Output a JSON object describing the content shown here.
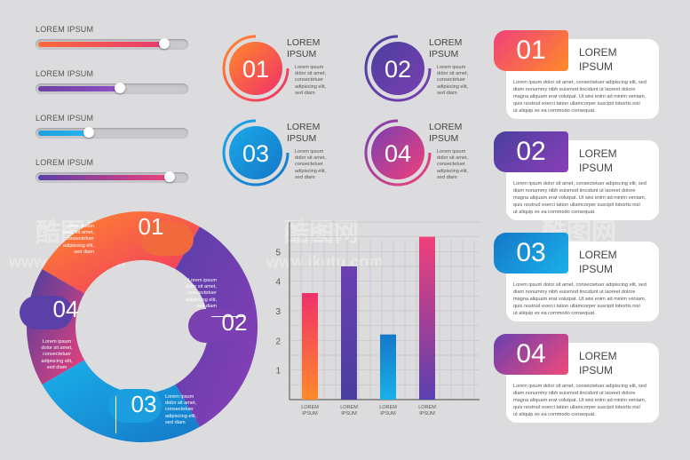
{
  "sliders": [
    {
      "label": "LOREM IPSUM",
      "value": 0.86,
      "from": "#ff6a3d",
      "to": "#e63a6e"
    },
    {
      "label": "LOREM IPSUM",
      "value": 0.56,
      "from": "#6a3fa0",
      "to": "#9050c8"
    },
    {
      "label": "LOREM IPSUM",
      "value": 0.35,
      "from": "#1e9ee0",
      "to": "#2ab6f0"
    },
    {
      "label": "LOREM IPSUM",
      "value": 0.9,
      "from": "#5840a8",
      "to": "#f0407a"
    }
  ],
  "circles": [
    {
      "num": "01",
      "title1": "LOREM",
      "title2": "IPSUM",
      "text": [
        "Lorem ipsum",
        "dolor sit amet,",
        "consectetuer",
        "adipiscing elit,",
        "sed diam"
      ],
      "c1": "#ff8a2a",
      "c2": "#f0306a"
    },
    {
      "num": "02",
      "title1": "LOREM",
      "title2": "IPSUM",
      "text": [
        "Lorem ipsum",
        "dolor sit amet,",
        "consectetuer",
        "adipiscing elit,",
        "sed diam"
      ],
      "c1": "#4a3f9e",
      "c2": "#7a3fb0"
    },
    {
      "num": "03",
      "title1": "LOREM",
      "title2": "IPSUM",
      "text": [
        "Lorem ipsum",
        "dolor sit amet,",
        "consectetuer",
        "adipiscing elit,",
        "sed diam"
      ],
      "c1": "#1aa8e8",
      "c2": "#1578c8"
    },
    {
      "num": "04",
      "title1": "LOREM",
      "title2": "IPSUM",
      "text": [
        "Lorem ipsum",
        "dolor sit amet,",
        "consectetuer",
        "adipiscing elit,",
        "sed diam"
      ],
      "c1": "#7a3fb0",
      "c2": "#f0407a"
    }
  ],
  "cards": [
    {
      "num": "01",
      "title1": "LOREM",
      "title2": "IPSUM",
      "text": [
        "Lorem ipsum dolor sit amet, consectetuer adipiscing elit, sed",
        "diam nonummy nibh euismod tincidunt ut laoreet dolore",
        "magna aliquam erat volutpat. Ut wisi enim ad minim veniam,",
        "quis nostrud exerci tation ullamcorper suscipit lobortis nisl",
        "ut aliquip ex ea commodo consequat."
      ],
      "c1": "#f0407a",
      "c2": "#ff8a2a"
    },
    {
      "num": "02",
      "title1": "LOREM",
      "title2": "IPSUM",
      "text": [
        "Lorem ipsum dolor sit amet, consectetuer adipiscing elit, sed",
        "diam nonummy nibh euismod tincidunt ut laoreet dolore",
        "magna aliquam erat volutpat. Ut wisi enim ad minim veniam,",
        "quis nostrud exerci tation ullamcorper suscipit lobortis nisl",
        "ut aliquip ex ea commodo consequat."
      ],
      "c1": "#4a3f9e",
      "c2": "#8a3fb8"
    },
    {
      "num": "03",
      "title1": "LOREM",
      "title2": "IPSUM",
      "text": [
        "Lorem ipsum dolor sit amet, consectetuer adipiscing elit, sed",
        "diam nonummy nibh euismod tincidunt ut laoreet dolore",
        "magna aliquam erat volutpat. Ut wisi enim ad minim veniam,",
        "quis nostrud exerci tation ullamcorper suscipit lobortis nisl",
        "ut aliquip ex ea commodo consequat."
      ],
      "c1": "#1578c8",
      "c2": "#1ab0ea"
    },
    {
      "num": "04",
      "title1": "LOREM",
      "title2": "IPSUM",
      "text": [
        "Lorem ipsum dolor sit amet, consectetuer adipiscing elit, sed",
        "diam nonummy nibh euismod tincidunt ut laoreet dolore",
        "magna aliquam erat volutpat. Ut wisi enim ad minim veniam,",
        "quis nostrud exerci tation ullamcorper suscipit lobortis nisl",
        "ut aliquip ex ea commodo consequat."
      ],
      "c1": "#6a3fb0",
      "c2": "#f04a7a"
    }
  ],
  "ring": [
    {
      "num": "01",
      "text": [
        "Lorem ipsum",
        "dolor sit amet,",
        "consectetuer",
        "adipiscing elit,",
        "sed diam"
      ]
    },
    {
      "num": "02",
      "text": [
        "Lorem ipsum",
        "dolor sit amet,",
        "consectetuer",
        "adipiscing elit,",
        "sed diam"
      ]
    },
    {
      "num": "03",
      "text": [
        "Lorem ipsum",
        "dolor sit amet,",
        "consectetuer",
        "adipiscing elit,",
        "sed diam"
      ]
    },
    {
      "num": "04",
      "text": [
        "Lorem ipsum",
        "dolor sit amet,",
        "consectetuer",
        "adipiscing elit,",
        "sed diam"
      ]
    }
  ],
  "chart_data": {
    "type": "bar",
    "categories": [
      "LOREM IPSUM",
      "LOREM IPSUM",
      "LOREM IPSUM",
      "LOREM IPSUM"
    ],
    "values": [
      3.6,
      4.5,
      2.2,
      5.5
    ],
    "colors": [
      [
        "#ff8a2a",
        "#f0306a"
      ],
      [
        "#4a3f9e",
        "#6a3fb0"
      ],
      [
        "#1ab0ea",
        "#1578c8"
      ],
      [
        "#5a40b0",
        "#f0407a"
      ]
    ],
    "title": "",
    "xlabel": "",
    "ylabel": "",
    "yticks": [
      "1",
      "2",
      "3",
      "4",
      "5"
    ],
    "ylim": [
      0,
      6
    ],
    "grid": true
  },
  "watermark": [
    "酷图网",
    "www.ikutu.com"
  ]
}
